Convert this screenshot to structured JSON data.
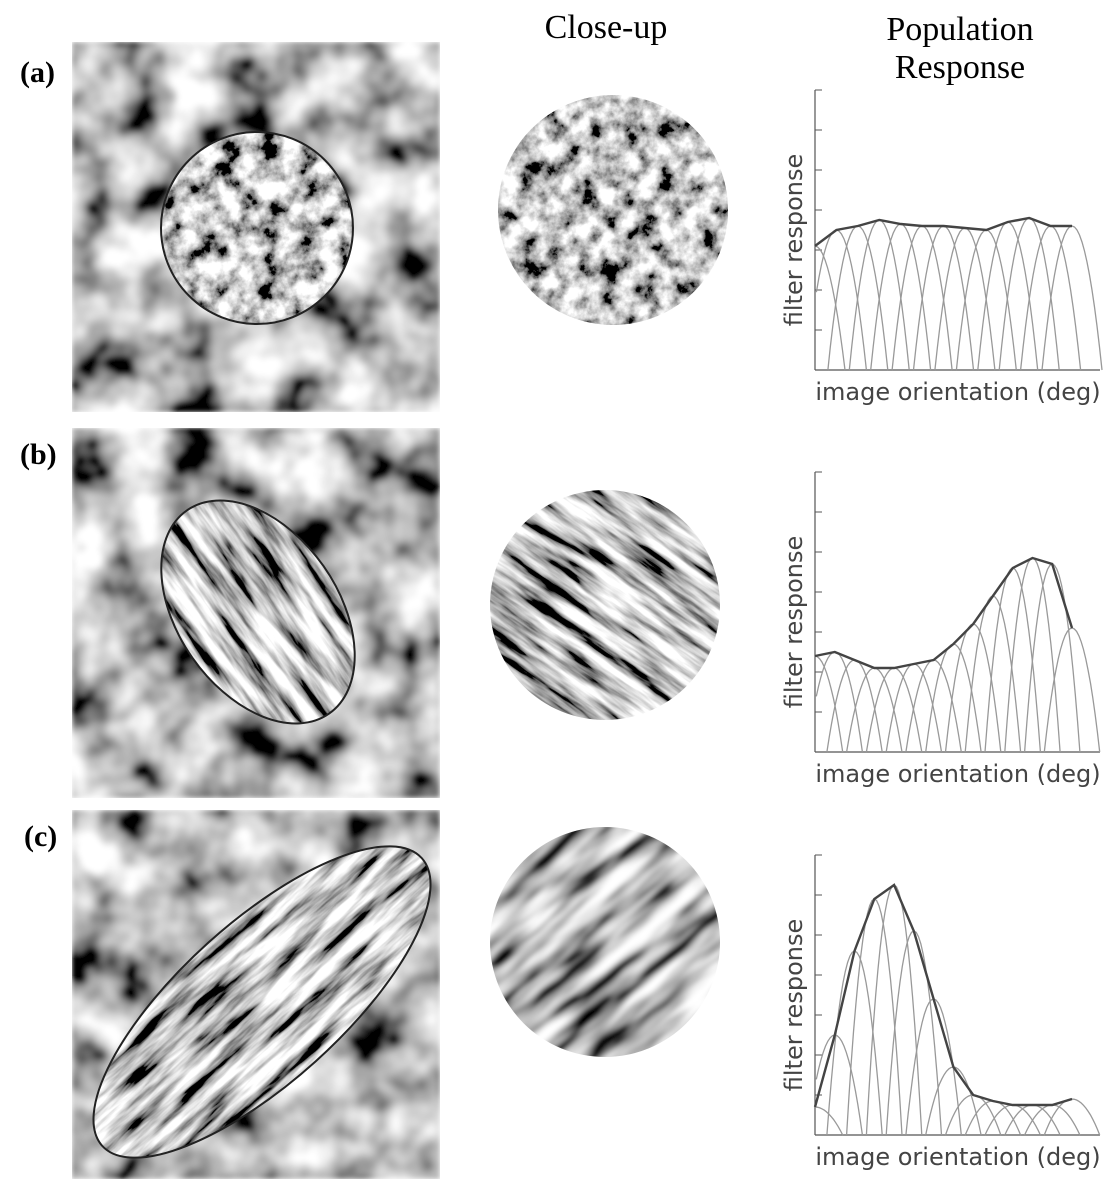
{
  "headers": {
    "closeup": "Close-up",
    "population": [
      "Population",
      "Response"
    ]
  },
  "panels": [
    {
      "label": "(a)",
      "chart": {
        "type": "line",
        "x_label": "image orientation (deg)",
        "y_label": "filter response",
        "ylim": [
          0,
          7
        ],
        "yticks": [
          0,
          1,
          2,
          3,
          4,
          5,
          6,
          7
        ],
        "values": [
          3.1,
          3.5,
          3.6,
          3.75,
          3.65,
          3.6,
          3.6,
          3.55,
          3.5,
          3.7,
          3.8,
          3.6,
          3.6
        ]
      }
    },
    {
      "label": "(b)",
      "chart": {
        "type": "line",
        "x_label": "image orientation (deg)",
        "y_label": "filter response",
        "ylim": [
          0,
          7
        ],
        "yticks": [
          0,
          1,
          2,
          3,
          4,
          5,
          6,
          7
        ],
        "values": [
          2.4,
          2.5,
          2.3,
          2.1,
          2.1,
          2.2,
          2.3,
          2.7,
          3.2,
          3.9,
          4.6,
          4.85,
          4.7,
          3.1
        ]
      }
    },
    {
      "label": "(c)",
      "chart": {
        "type": "line",
        "x_label": "image orientation (deg)",
        "y_label": "filter response",
        "ylim": [
          0,
          7
        ],
        "yticks": [
          0,
          1,
          2,
          3,
          4,
          5,
          6,
          7
        ],
        "values": [
          0.7,
          2.5,
          4.6,
          5.9,
          6.25,
          5.1,
          3.4,
          1.7,
          1.0,
          0.85,
          0.75,
          0.75,
          0.75,
          0.9
        ]
      }
    }
  ]
}
